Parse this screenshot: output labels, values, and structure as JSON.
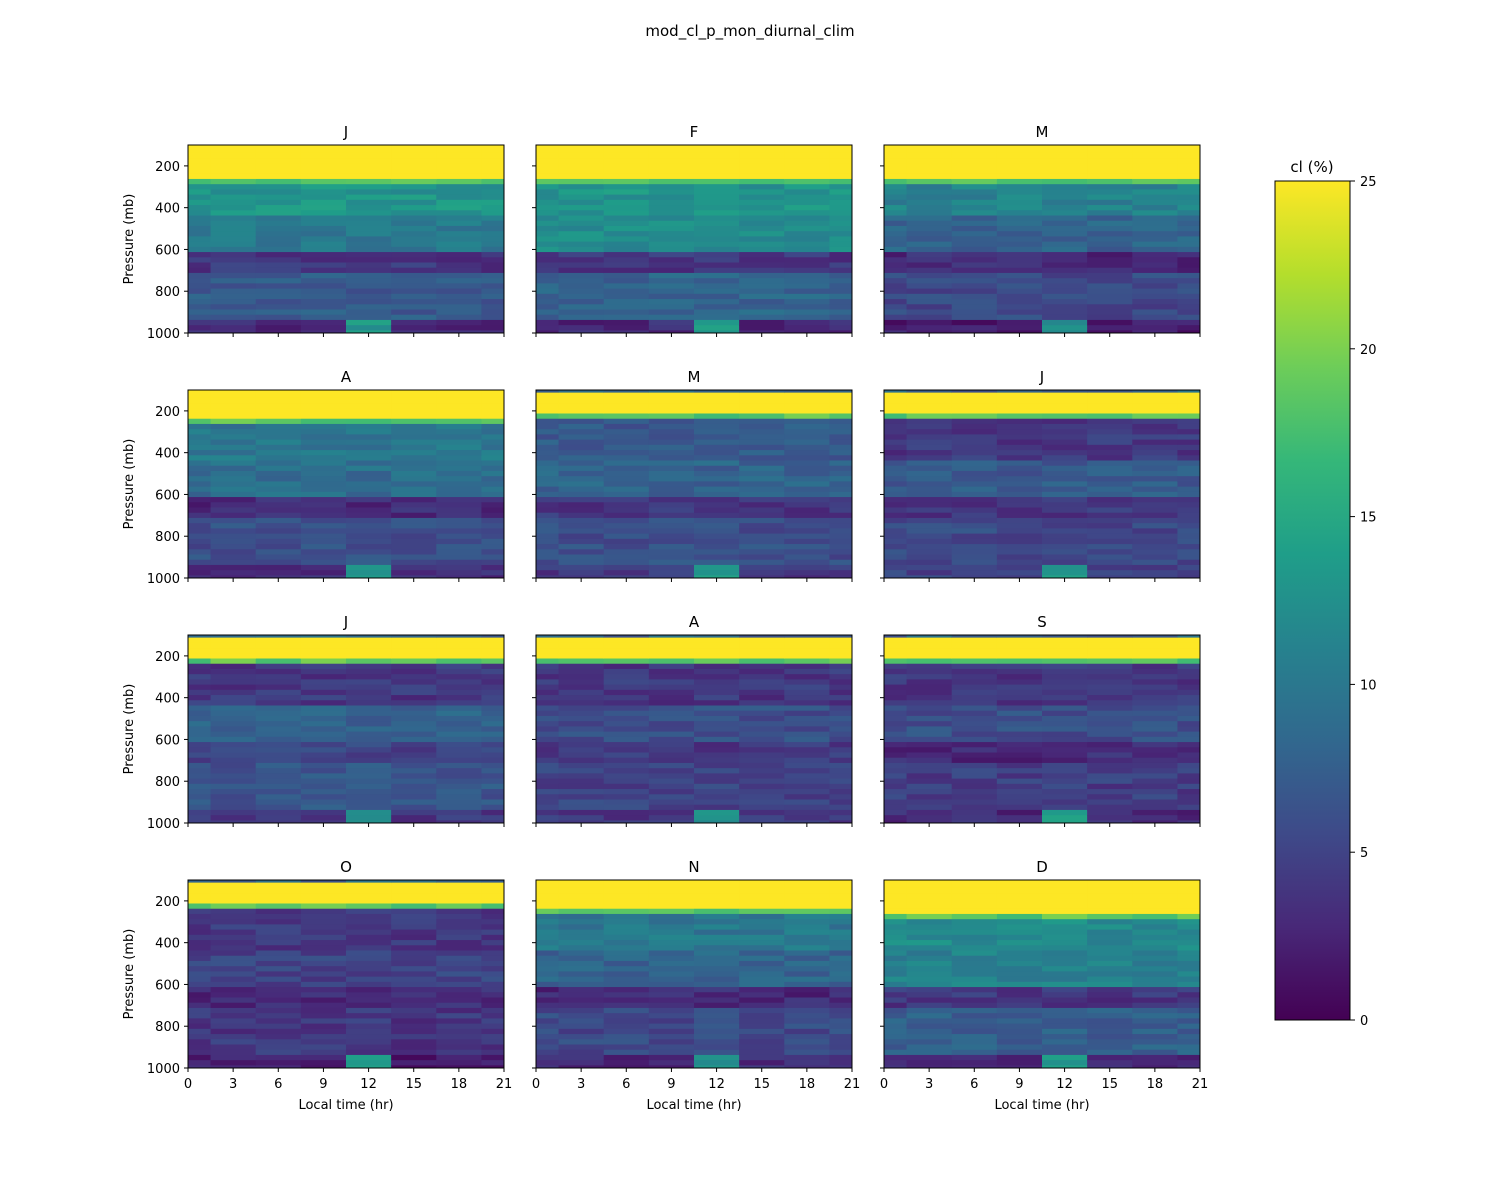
{
  "figure": {
    "title": "mod_cl_p_mon_diurnal_clim"
  },
  "colorbar": {
    "label": "cl (%)",
    "ticks": [
      "0",
      "5",
      "10",
      "15",
      "20",
      "25"
    ],
    "colormap": "viridis",
    "vmin": 0,
    "vmax": 25
  },
  "axes_text": {
    "ylabel": "Pressure (mb)",
    "xlabel": "Local time (hr)",
    "yticks": [
      "200",
      "400",
      "600",
      "800",
      "1000"
    ],
    "xticks": [
      "0",
      "3",
      "6",
      "9",
      "12",
      "15",
      "18",
      "21"
    ]
  },
  "chart_data": {
    "type": "heatmap",
    "grid": false,
    "x": [
      0,
      3,
      6,
      9,
      12,
      15,
      18,
      21
    ],
    "xlim": [
      0,
      21
    ],
    "ylim": [
      1000,
      100
    ],
    "y_levels": [
      1000,
      975,
      950,
      925,
      900,
      875,
      850,
      825,
      800,
      775,
      750,
      725,
      700,
      675,
      650,
      625,
      600,
      575,
      550,
      525,
      500,
      475,
      450,
      425,
      400,
      375,
      350,
      325,
      300,
      275,
      250,
      225,
      200,
      175,
      150,
      125,
      100
    ],
    "panels": [
      {
        "title": "J",
        "top_yellow_to": 270,
        "upper_level": 13,
        "mid_level": 10,
        "low_level": 4,
        "surface": 3,
        "surface_peak_at": 12
      },
      {
        "title": "F",
        "top_yellow_to": 270,
        "upper_level": 13,
        "mid_level": 12,
        "low_level": 4,
        "surface": 3,
        "surface_peak_at": 12
      },
      {
        "title": "M",
        "top_yellow_to": 260,
        "upper_level": 11,
        "mid_level": 8,
        "low_level": 3,
        "surface": 2,
        "surface_peak_at": 12
      },
      {
        "title": "A",
        "top_yellow_to": 240,
        "upper_level": 10,
        "mid_level": 9,
        "low_level": 3,
        "surface": 3,
        "surface_peak_at": 12
      },
      {
        "title": "M",
        "top_yellow_to": 220,
        "upper_level": 7,
        "mid_level": 8,
        "low_level": 4,
        "surface": 4,
        "surface_peak_at": 12
      },
      {
        "title": "J",
        "top_yellow_to": 220,
        "upper_level": 4,
        "mid_level": 7,
        "low_level": 4,
        "surface": 5,
        "surface_peak_at": 12
      },
      {
        "title": "J",
        "top_yellow_to": 210,
        "upper_level": 4,
        "mid_level": 8,
        "low_level": 5,
        "surface": 4,
        "surface_peak_at": 12
      },
      {
        "title": "A",
        "top_yellow_to": 200,
        "upper_level": 4,
        "mid_level": 6,
        "low_level": 4,
        "surface": 4,
        "surface_peak_at": 12
      },
      {
        "title": "S",
        "top_yellow_to": 200,
        "upper_level": 4,
        "mid_level": 6,
        "low_level": 3,
        "surface": 3,
        "surface_peak_at": 12
      },
      {
        "title": "O",
        "top_yellow_to": 220,
        "upper_level": 4,
        "mid_level": 5,
        "low_level": 3,
        "surface": 2,
        "surface_peak_at": 12
      },
      {
        "title": "N",
        "top_yellow_to": 230,
        "upper_level": 10,
        "mid_level": 8,
        "low_level": 3,
        "surface": 3,
        "surface_peak_at": 12
      },
      {
        "title": "D",
        "top_yellow_to": 260,
        "upper_level": 12,
        "mid_level": 11,
        "low_level": 4,
        "surface": 3,
        "surface_peak_at": 12
      }
    ]
  }
}
